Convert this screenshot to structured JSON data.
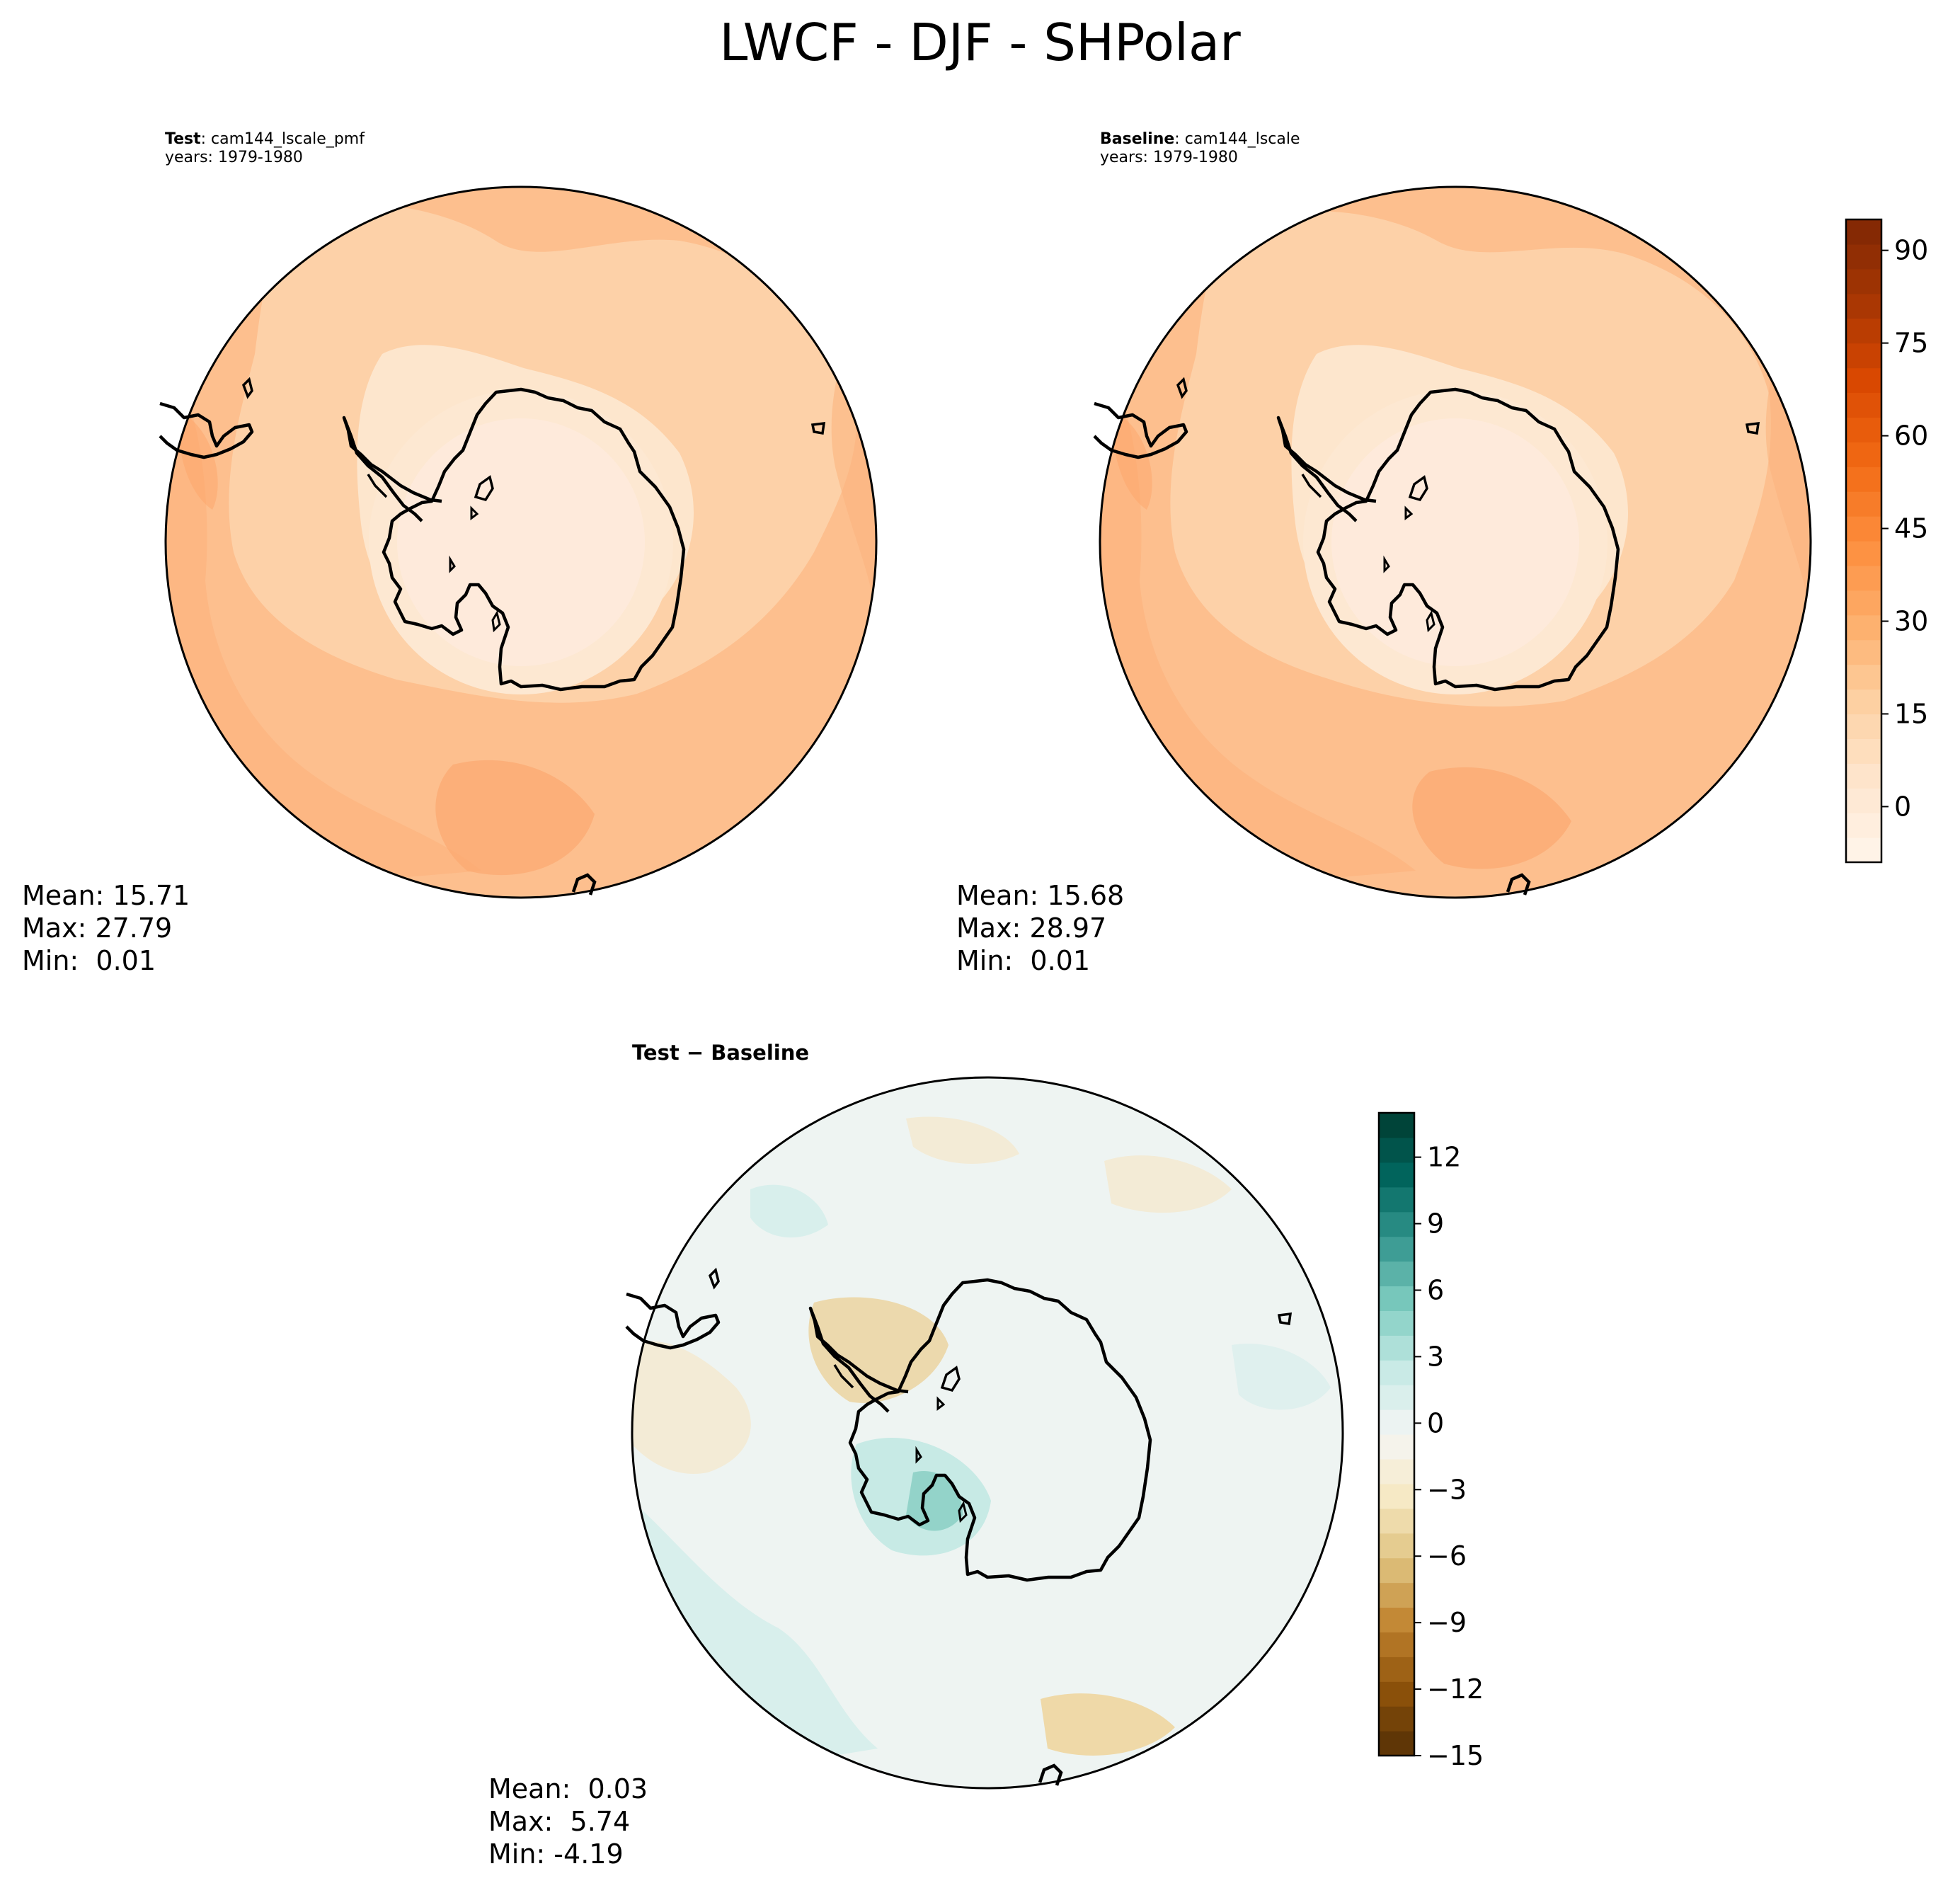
{
  "title": "LWCF - DJF - SHPolar",
  "panels": {
    "test": {
      "label_bold": "Test",
      "label_rest": ": cam144_lscale_pmf",
      "years": "years: 1979-1980",
      "mean": "Mean: 15.71",
      "max": "Max: 27.79",
      "min": "Min:  0.01"
    },
    "baseline": {
      "label_bold": "Baseline",
      "label_rest": ": cam144_lscale",
      "years": "years: 1979-1980",
      "mean": "Mean: 15.68",
      "max": "Max: 28.97",
      "min": "Min:  0.01"
    },
    "diff": {
      "label": "Test − Baseline",
      "mean": "Mean:  0.03",
      "max": "Max:  5.74",
      "min": "Min: -4.19"
    }
  },
  "colorbars": {
    "main": {
      "colormap": "Oranges",
      "range": [
        -9,
        95
      ],
      "ticks": [
        "0",
        "15",
        "30",
        "45",
        "60",
        "75",
        "90"
      ],
      "colors": [
        "#fff5eb",
        "#fee6ce",
        "#fdd0a2",
        "#fdae6b",
        "#fd8d3c",
        "#f16913",
        "#d94801",
        "#a63603",
        "#7f2704"
      ]
    },
    "diff": {
      "colormap": "BrBG",
      "range": [
        -15,
        14
      ],
      "ticks": [
        "12",
        "9",
        "6",
        "3",
        "0",
        "−3",
        "−6",
        "−9",
        "−12",
        "−15"
      ],
      "colors": [
        "#543005",
        "#8c510a",
        "#bf812d",
        "#dfc27d",
        "#f6e8c3",
        "#f5f5f5",
        "#c7eae5",
        "#80cdc1",
        "#35978f",
        "#01665e",
        "#003c30"
      ]
    }
  }
}
